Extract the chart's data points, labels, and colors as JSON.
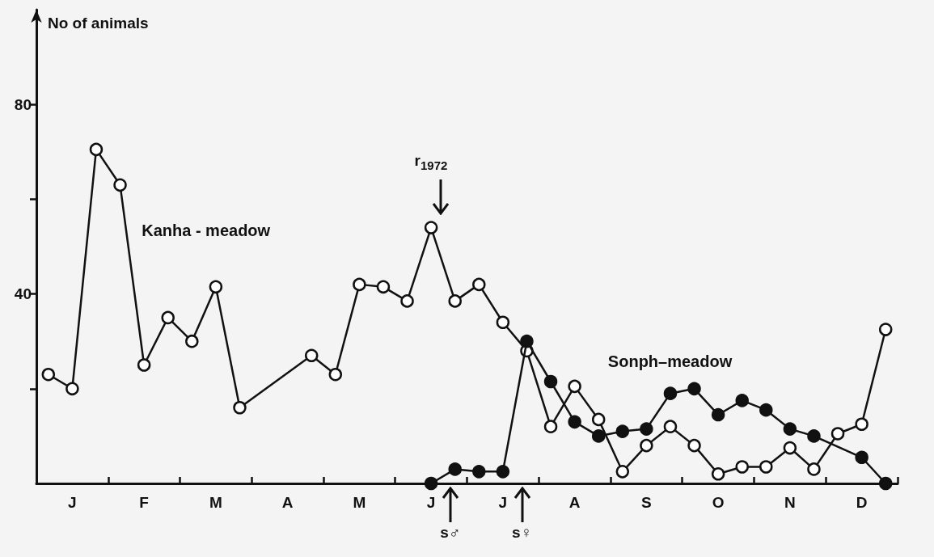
{
  "chart_data": {
    "type": "line",
    "ylabel": "No of animals",
    "categories": [
      null,
      "J",
      null,
      null,
      "F",
      null,
      null,
      "M",
      null,
      null,
      "A",
      null,
      null,
      "M",
      null,
      null,
      "J",
      null,
      null,
      "J",
      null,
      null,
      "A",
      null,
      null,
      "S",
      null,
      null,
      "O",
      null,
      null,
      "N",
      null,
      null,
      "D",
      null
    ],
    "ylim": [
      0,
      100
    ],
    "yticks": [
      {
        "value": 20,
        "label": null
      },
      40,
      {
        "value": 60,
        "label": null
      },
      80
    ],
    "grid": false,
    "legend": false,
    "marker": "circle",
    "line_style": "solid",
    "series": [
      {
        "name": "Kanha - meadow",
        "color": "#111111",
        "values": [
          23,
          20,
          70.5,
          63,
          25,
          35,
          30,
          41.5,
          16,
          null,
          null,
          27,
          23,
          42,
          41.5,
          38.5,
          54,
          38.5,
          42,
          34,
          28,
          12,
          20.5,
          13.5,
          2.5,
          8,
          12,
          8,
          2,
          3.5,
          3.5,
          7.5,
          3,
          10.5,
          12.5,
          32.5
        ]
      },
      {
        "name": "Sonph–meadow",
        "color": "#111111",
        "values": [
          null,
          null,
          null,
          null,
          null,
          null,
          null,
          null,
          null,
          null,
          null,
          null,
          null,
          null,
          null,
          null,
          0,
          3,
          2.5,
          2.5,
          30,
          21.5,
          13,
          10,
          11,
          11.5,
          19,
          20,
          14.5,
          17.5,
          15.5,
          11.5,
          10,
          null,
          5.5,
          0
        ]
      }
    ],
    "annotations": [
      "r$_{1972}$",
      "s♂",
      "s♀"
    ]
  }
}
